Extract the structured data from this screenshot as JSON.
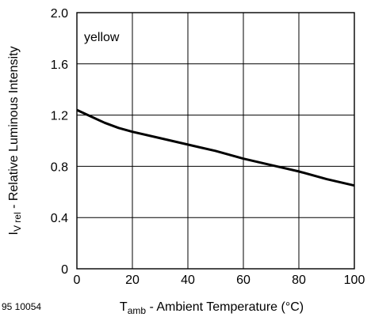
{
  "chart_data": {
    "type": "line",
    "title": "",
    "xlabel": {
      "main": "T",
      "sub": "amb",
      "rest": " - Ambient Temperature (°C)"
    },
    "ylabel": {
      "main": "I",
      "sub": "V rel",
      "rest": " - Relative Luminous Intensity"
    },
    "xlim": [
      0,
      100
    ],
    "ylim": [
      0,
      2.0
    ],
    "x_ticks": [
      0,
      20,
      40,
      60,
      80,
      100
    ],
    "x_tick_labels": [
      "0",
      "20",
      "40",
      "60",
      "80",
      "100"
    ],
    "y_ticks": [
      0,
      0.4,
      0.8,
      1.2,
      1.6,
      2.0
    ],
    "y_tick_labels": [
      "0",
      "0.4",
      "0.8",
      "1.2",
      "1.6",
      "2.0"
    ],
    "grid": true,
    "annotation": "yellow",
    "figure_id": "95 10054",
    "series": [
      {
        "color": "#000000",
        "x": [
          0,
          5,
          10,
          15,
          20,
          30,
          40,
          50,
          60,
          70,
          80,
          90,
          100
        ],
        "y": [
          1.24,
          1.19,
          1.14,
          1.1,
          1.07,
          1.02,
          0.97,
          0.92,
          0.86,
          0.81,
          0.76,
          0.7,
          0.65
        ]
      }
    ]
  }
}
